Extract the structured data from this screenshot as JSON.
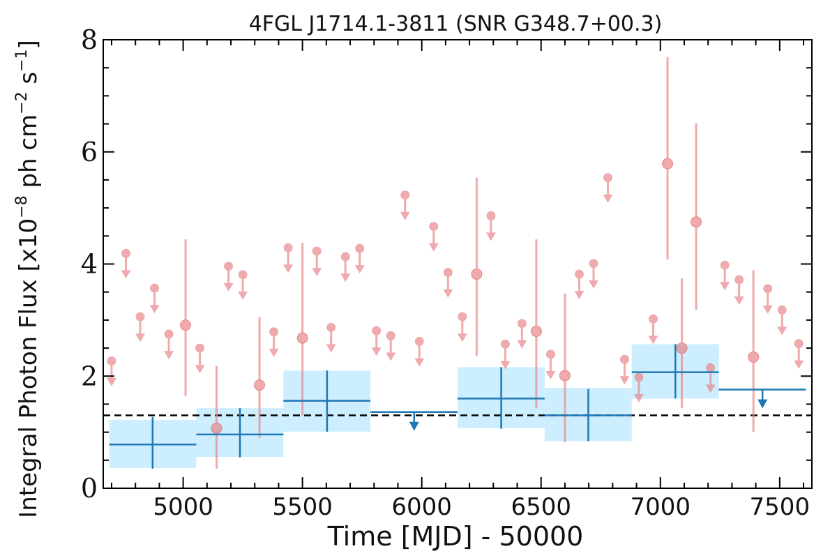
{
  "chart_data": {
    "type": "scatter",
    "title": "4FGL J1714.1-3811 (SNR G348.7+00.3)",
    "xlabel": "Time [MJD] - 50000",
    "ylabel_main": "Integral Photon Flux [x10",
    "ylabel_exp1": "−8",
    "ylabel_mid": " ph cm",
    "ylabel_exp2": "−2",
    "ylabel_end": " s",
    "ylabel_exp3": "−1",
    "ylabel_close": "]",
    "xlim": [
      4665,
      7635
    ],
    "ylim": [
      0,
      8
    ],
    "xticks": [
      5000,
      5500,
      6000,
      6500,
      7000,
      7500
    ],
    "yticks": [
      0,
      2,
      4,
      6,
      8
    ],
    "reference_line": 1.3,
    "colors": {
      "monthly": "#e8878a",
      "yearly": "#1f77b4",
      "band": "#cdeeff",
      "reference": "#000000"
    },
    "monthly_upper_limits": [
      {
        "x": 4700,
        "y": 2.27
      },
      {
        "x": 4760,
        "y": 4.19
      },
      {
        "x": 4820,
        "y": 3.06
      },
      {
        "x": 4880,
        "y": 3.57
      },
      {
        "x": 4940,
        "y": 2.75
      },
      {
        "x": 5070,
        "y": 2.5
      },
      {
        "x": 5190,
        "y": 3.96
      },
      {
        "x": 5250,
        "y": 3.81
      },
      {
        "x": 5380,
        "y": 2.79
      },
      {
        "x": 5440,
        "y": 4.29
      },
      {
        "x": 5560,
        "y": 4.23
      },
      {
        "x": 5620,
        "y": 2.87
      },
      {
        "x": 5680,
        "y": 4.13
      },
      {
        "x": 5740,
        "y": 4.28
      },
      {
        "x": 5810,
        "y": 2.81
      },
      {
        "x": 5870,
        "y": 2.72
      },
      {
        "x": 5930,
        "y": 5.23
      },
      {
        "x": 5990,
        "y": 2.62
      },
      {
        "x": 6050,
        "y": 4.67
      },
      {
        "x": 6110,
        "y": 3.85
      },
      {
        "x": 6170,
        "y": 3.06
      },
      {
        "x": 6290,
        "y": 4.86
      },
      {
        "x": 6350,
        "y": 2.57
      },
      {
        "x": 6420,
        "y": 2.94
      },
      {
        "x": 6540,
        "y": 2.39
      },
      {
        "x": 6660,
        "y": 3.82
      },
      {
        "x": 6720,
        "y": 4.01
      },
      {
        "x": 6780,
        "y": 5.54
      },
      {
        "x": 6850,
        "y": 2.3
      },
      {
        "x": 6910,
        "y": 1.98
      },
      {
        "x": 6970,
        "y": 3.02
      },
      {
        "x": 7210,
        "y": 2.15
      },
      {
        "x": 7270,
        "y": 3.98
      },
      {
        "x": 7330,
        "y": 3.72
      },
      {
        "x": 7450,
        "y": 3.56
      },
      {
        "x": 7510,
        "y": 3.18
      },
      {
        "x": 7580,
        "y": 2.58
      }
    ],
    "monthly_detections": [
      {
        "x": 5010,
        "y": 2.91,
        "ylo": 1.64,
        "yhi": 4.44
      },
      {
        "x": 5140,
        "y": 1.07,
        "ylo": 0.35,
        "yhi": 2.18
      },
      {
        "x": 5320,
        "y": 1.84,
        "ylo": 0.9,
        "yhi": 3.05
      },
      {
        "x": 5500,
        "y": 2.68,
        "ylo": 1.3,
        "yhi": 4.38
      },
      {
        "x": 6230,
        "y": 3.82,
        "ylo": 2.36,
        "yhi": 5.54
      },
      {
        "x": 6480,
        "y": 2.8,
        "ylo": 1.43,
        "yhi": 4.44
      },
      {
        "x": 6600,
        "y": 2.01,
        "ylo": 0.82,
        "yhi": 3.47
      },
      {
        "x": 7030,
        "y": 5.79,
        "ylo": 4.08,
        "yhi": 7.69
      },
      {
        "x": 7090,
        "y": 2.5,
        "ylo": 1.43,
        "yhi": 3.74
      },
      {
        "x": 7150,
        "y": 4.75,
        "ylo": 3.18,
        "yhi": 6.51
      },
      {
        "x": 7390,
        "y": 2.34,
        "ylo": 1.01,
        "yhi": 3.89
      }
    ],
    "yearly_bins": [
      {
        "x0": 4690,
        "x1": 5055,
        "x": 4872,
        "y": 0.78,
        "ylo": 0.35,
        "yhi": 1.27,
        "band": [
          0.36,
          1.22
        ]
      },
      {
        "x0": 5055,
        "x1": 5420,
        "x": 5238,
        "y": 0.96,
        "ylo": 0.55,
        "yhi": 1.43,
        "band": [
          0.56,
          1.43
        ]
      },
      {
        "x0": 5420,
        "x1": 5785,
        "x": 5603,
        "y": 1.56,
        "ylo": 1.01,
        "yhi": 2.1,
        "band": [
          1.01,
          2.1
        ]
      },
      {
        "x0": 6150,
        "x1": 6515,
        "x": 6333,
        "y": 1.6,
        "ylo": 1.06,
        "yhi": 2.16,
        "band": [
          1.07,
          2.16
        ]
      },
      {
        "x0": 6515,
        "x1": 6880,
        "x": 6698,
        "y": 1.3,
        "ylo": 0.84,
        "yhi": 1.77,
        "band": [
          0.84,
          1.79
        ]
      },
      {
        "x0": 6880,
        "x1": 7245,
        "x": 7063,
        "y": 2.07,
        "ylo": 1.6,
        "yhi": 2.57,
        "band": [
          1.6,
          2.57
        ]
      }
    ],
    "yearly_upper_limits": [
      {
        "x0": 5785,
        "x1": 6150,
        "x": 5968,
        "y": 1.36
      },
      {
        "x0": 7245,
        "x1": 7610,
        "x": 7428,
        "y": 1.76
      }
    ]
  }
}
